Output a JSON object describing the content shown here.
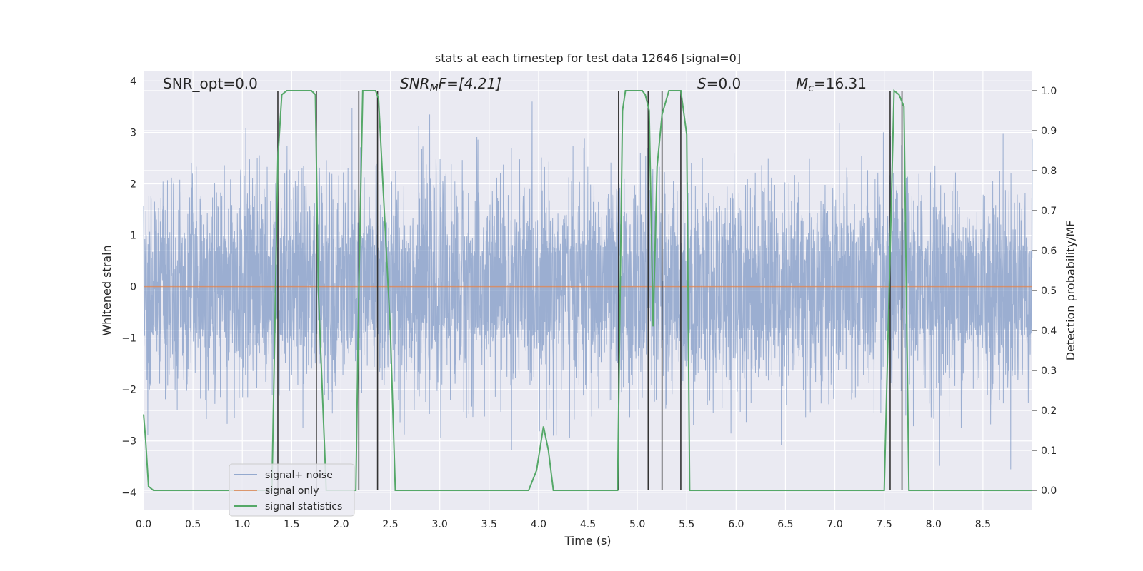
{
  "chart_data": {
    "type": "line",
    "title": "stats at each timestep for test data 12646 [signal=0]",
    "xlabel": "Time (s)",
    "ylabel": "Whitened strain",
    "y2label": "Detection probability/MF",
    "xlim": [
      0,
      9.0
    ],
    "ylim": [
      -4.35,
      4.2
    ],
    "y2lim": [
      -0.05,
      1.05
    ],
    "x_ticks": [
      0.0,
      0.5,
      1.0,
      1.5,
      2.0,
      2.5,
      3.0,
      3.5,
      4.0,
      4.5,
      5.0,
      5.5,
      6.0,
      6.5,
      7.0,
      7.5,
      8.0,
      8.5
    ],
    "x_tick_labels": [
      "0.0",
      "0.5",
      "1.0",
      "1.5",
      "2.0",
      "2.5",
      "3.0",
      "3.5",
      "4.0",
      "4.5",
      "5.0",
      "5.5",
      "6.0",
      "6.5",
      "7.0",
      "7.5",
      "8.0",
      "8.5"
    ],
    "y_ticks": [
      4,
      3,
      2,
      1,
      0,
      -1,
      -2,
      -3,
      -4
    ],
    "y_tick_labels": [
      "4",
      "3",
      "2",
      "1",
      "0",
      "−1",
      "−2",
      "−3",
      "−4"
    ],
    "y2_ticks": [
      1.0,
      0.9,
      0.8,
      0.7,
      0.6,
      0.5,
      0.4,
      0.3,
      0.2,
      0.1,
      0.0
    ],
    "y2_tick_labels": [
      "1.0",
      "0.9",
      "0.8",
      "0.7",
      "0.6",
      "0.5",
      "0.4",
      "0.3",
      "0.2",
      "0.1",
      "0.0"
    ],
    "grid": true,
    "legend_position": "lower-left",
    "annotations": {
      "snr_opt": "SNR_opt=0.0",
      "snr_mf_main": "SNR",
      "snr_mf_sub": "M",
      "snr_mf_rest": "F=[4.21]",
      "s_sym": "S",
      "s_rest": "=0.0",
      "mc_main": "M",
      "mc_sub": "c",
      "mc_rest": "=16.31"
    },
    "noise": {
      "name": "signal+ noise",
      "color": "#4c72b0",
      "typical_band": [
        -1.5,
        1.5
      ],
      "peak_range": [
        -3.9,
        3.6
      ]
    },
    "signal": {
      "name": "signal only",
      "color": "#dd8452",
      "value": 0.0
    },
    "statistics": {
      "name": "signal statistics",
      "color": "#55a868",
      "x": [
        0.0,
        0.02,
        0.05,
        0.1,
        0.15,
        1.3,
        1.36,
        1.4,
        1.45,
        1.5,
        1.7,
        1.74,
        1.77,
        1.85,
        2.15,
        2.18,
        2.22,
        2.26,
        2.35,
        2.38,
        2.5,
        2.55,
        3.9,
        3.98,
        4.05,
        4.1,
        4.15,
        4.8,
        4.85,
        4.88,
        5.0,
        5.05,
        5.08,
        5.12,
        5.16,
        5.2,
        5.25,
        5.32,
        5.44,
        5.5,
        5.53,
        5.58,
        5.65,
        7.5,
        7.55,
        7.6,
        7.65,
        7.7,
        7.75,
        7.8,
        9.0
      ],
      "y": [
        0.19,
        0.13,
        0.01,
        0.0,
        0.0,
        0.0,
        0.83,
        0.99,
        1.0,
        1.0,
        1.0,
        0.99,
        0.5,
        0.0,
        0.0,
        0.5,
        1.0,
        1.0,
        1.0,
        0.98,
        0.4,
        0.0,
        0.0,
        0.05,
        0.16,
        0.1,
        0.0,
        0.0,
        0.95,
        1.0,
        1.0,
        1.0,
        0.99,
        0.95,
        0.41,
        0.81,
        0.94,
        1.0,
        1.0,
        0.89,
        0.0,
        0.0,
        0.0,
        0.0,
        0.5,
        1.0,
        0.99,
        0.96,
        0.0,
        0.0,
        0.0
      ]
    },
    "detection_markers": {
      "color": "#333333",
      "y2_top": 1.0,
      "x": [
        1.36,
        1.75,
        2.18,
        2.37,
        4.81,
        5.11,
        5.25,
        5.44,
        7.56,
        7.68
      ]
    }
  }
}
